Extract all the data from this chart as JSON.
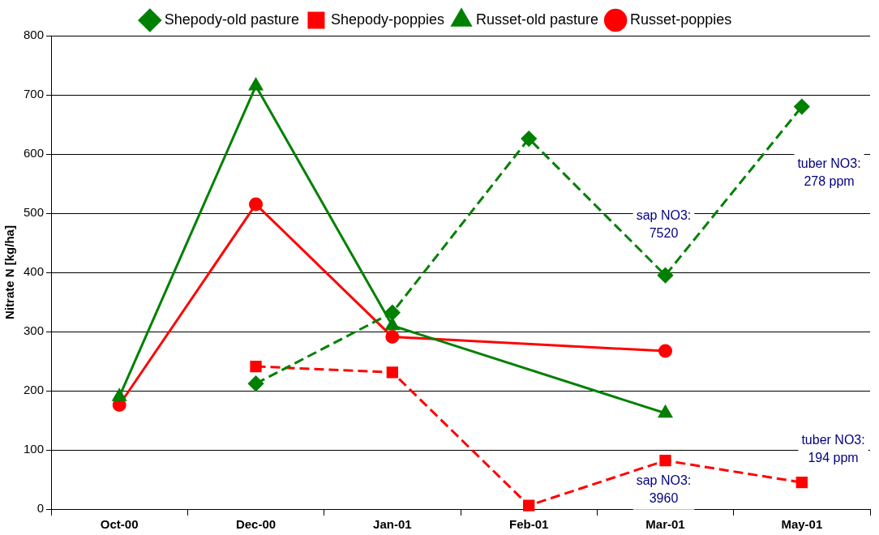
{
  "chart_data": {
    "type": "line",
    "ylabel": "Nitrate N [kg/ha]",
    "categories": [
      "Oct-00",
      "Dec-00",
      "Jan-01",
      "Feb-01",
      "Mar-01",
      "May-01"
    ],
    "ylim": [
      0,
      800
    ],
    "yticks": [
      0,
      100,
      200,
      300,
      400,
      500,
      600,
      700,
      800
    ],
    "grid": "y",
    "legend": "top",
    "series": [
      {
        "name": "Shepody-old pasture",
        "color": "#008000",
        "marker": "diamond",
        "line_style": "dashed",
        "values": [
          null,
          212,
          332,
          626,
          395,
          680
        ]
      },
      {
        "name": "Shepody-poppies",
        "color": "#ff0000",
        "marker": "square",
        "line_style": "dashed",
        "values": [
          null,
          241,
          231,
          6,
          82,
          45
        ]
      },
      {
        "name": "Russet-old pasture",
        "color": "#008000",
        "marker": "triangle",
        "line_style": "solid",
        "values": [
          190,
          715,
          310,
          null,
          162,
          null
        ]
      },
      {
        "name": "Russet-poppies",
        "color": "#ff0000",
        "marker": "circle",
        "line_style": "solid",
        "values": [
          176,
          515,
          291,
          null,
          267,
          null
        ]
      }
    ],
    "annotations": [
      "sap NO3:\n7520",
      "tuber NO3:\n278 ppm",
      "sap NO3:\n3960",
      "tuber NO3:\n194 ppm"
    ]
  }
}
